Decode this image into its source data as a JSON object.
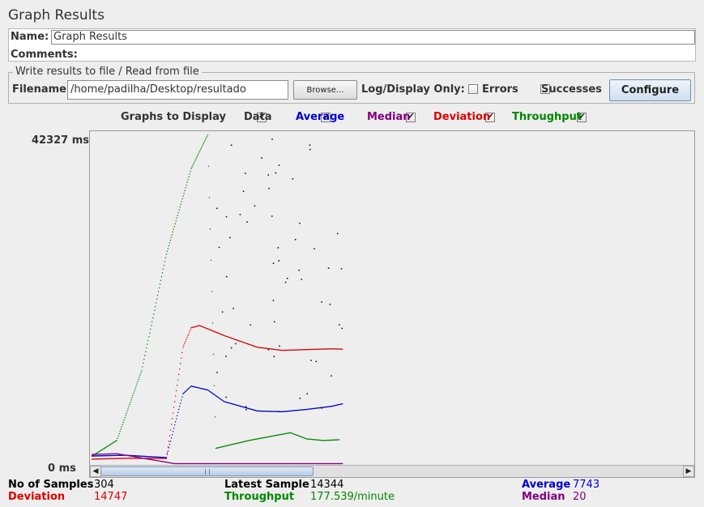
{
  "window": {
    "title": "Graph Results"
  },
  "name_section": {
    "name_label": "Name:",
    "name_value": "Graph Results",
    "comments_label": "Comments:"
  },
  "file_section": {
    "legend": "Write results to file / Read from file",
    "filename_label": "Filename",
    "filename_value": "/home/padilha/Desktop/resultado",
    "browse_label": "Browse...",
    "log_display_label": "Log/Display Only:",
    "errors_label": "Errors",
    "errors_checked": false,
    "successes_label": "Successes",
    "successes_checked": false,
    "configure_label": "Configure"
  },
  "graphs_to_display": {
    "label": "Graphs to Display",
    "options": [
      {
        "label": "Data",
        "checked": true,
        "color": "#000000"
      },
      {
        "label": "Average",
        "checked": true,
        "color": "#0000cc"
      },
      {
        "label": "Median",
        "checked": true,
        "color": "#800080"
      },
      {
        "label": "Deviation",
        "checked": true,
        "color": "#dd0000"
      },
      {
        "label": "Throughput",
        "checked": true,
        "color": "#008800"
      }
    ]
  },
  "chart_data": {
    "type": "line",
    "y_max_label": "42327 ms",
    "y_min_label": "0 ms",
    "ylim": [
      0,
      42327
    ],
    "x_samples": 304,
    "series": [
      {
        "name": "Throughput",
        "color": "#008800",
        "points": [
          [
            0,
            1000
          ],
          [
            30,
            3000
          ],
          [
            60,
            12000
          ],
          [
            90,
            27000
          ],
          [
            120,
            38000
          ],
          [
            140,
            42327
          ],
          [
            150,
            2000
          ],
          [
            190,
            3000
          ],
          [
            230,
            3800
          ],
          [
            240,
            4000
          ],
          [
            260,
            3200
          ],
          [
            280,
            3000
          ],
          [
            300,
            3100
          ]
        ]
      },
      {
        "name": "Deviation",
        "color": "#dd0000",
        "points": [
          [
            0,
            600
          ],
          [
            40,
            700
          ],
          [
            90,
            700
          ],
          [
            100,
            8000
          ],
          [
            110,
            15000
          ],
          [
            120,
            17500
          ],
          [
            130,
            17800
          ],
          [
            160,
            16500
          ],
          [
            200,
            15000
          ],
          [
            230,
            14600
          ],
          [
            260,
            14700
          ],
          [
            290,
            14800
          ],
          [
            304,
            14747
          ]
        ]
      },
      {
        "name": "Average",
        "color": "#0000cc",
        "points": [
          [
            0,
            1000
          ],
          [
            40,
            1100
          ],
          [
            90,
            800
          ],
          [
            100,
            5000
          ],
          [
            110,
            9000
          ],
          [
            120,
            10000
          ],
          [
            140,
            9500
          ],
          [
            160,
            8000
          ],
          [
            200,
            6800
          ],
          [
            230,
            6700
          ],
          [
            260,
            7000
          ],
          [
            290,
            7400
          ],
          [
            304,
            7743
          ]
        ]
      },
      {
        "name": "Median",
        "color": "#800080",
        "points": [
          [
            0,
            1200
          ],
          [
            30,
            1300
          ],
          [
            90,
            200
          ],
          [
            100,
            20
          ],
          [
            200,
            20
          ],
          [
            304,
            20
          ]
        ]
      }
    ]
  },
  "summary": {
    "no_of_samples_label": "No of Samples",
    "no_of_samples_value": "304",
    "latest_sample_label": "Latest Sample",
    "latest_sample_value": "14344",
    "average_label": "Average",
    "average_value": "7743",
    "deviation_label": "Deviation",
    "deviation_value": "14747",
    "throughput_label": "Throughput",
    "throughput_value": "177.539/minute",
    "median_label": "Median",
    "median_value": "20"
  },
  "colors": {
    "deviation": "#dd0000",
    "throughput": "#008800",
    "average": "#0000cc",
    "median": "#800080",
    "data": "#000000"
  }
}
